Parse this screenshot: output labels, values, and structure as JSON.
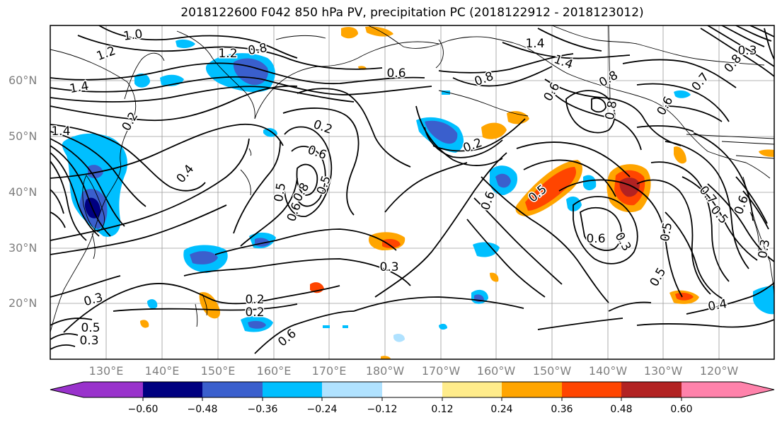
{
  "title": "2018122600 F042 850 hPa PV, precipitation PC (2018122912 - 2018123012)",
  "lat_labels": [
    "60°N",
    "50°N",
    "40°N",
    "30°N",
    "20°N"
  ],
  "lon_labels": [
    "130°E",
    "140°E",
    "150°E",
    "160°E",
    "170°E",
    "180°W",
    "170°W",
    "160°W",
    "150°W",
    "140°W",
    "130°W",
    "120°W"
  ],
  "colorbar": {
    "colors": [
      "#9932cc",
      "#000080",
      "#3a5fcd",
      "#00bfff",
      "#b0e2ff",
      "#ffffff",
      "#ffec8b",
      "#ffa500",
      "#ff4500",
      "#b22222",
      "#ff82ab"
    ],
    "tick_labels": [
      "−0.60",
      "−0.48",
      "−0.36",
      "−0.24",
      "−0.12",
      "0.12",
      "0.24",
      "0.36",
      "0.48",
      "0.60"
    ]
  },
  "contour_labels": [
    "1.0",
    "1.2",
    "0.8",
    "1.4",
    "1.2",
    "1.4",
    "0.8",
    "1.4",
    "1.4",
    "0.3",
    "0.8",
    "0.6",
    "0.8",
    "0.6",
    "0.8",
    "0.6",
    "0.7",
    "0.2",
    "0.6",
    "0.8",
    "0.5",
    "0.6",
    "0.5",
    "0.4",
    "0.2",
    "0.6",
    "0.5",
    "0.3",
    "0.5",
    "0.7",
    "0.5",
    "0.6",
    "0.5",
    "0.6",
    "0.3",
    "0.2",
    "0.3",
    "0.2",
    "0.2",
    "0.3",
    "0.6",
    "0.3",
    "0.5",
    "0.4"
  ]
}
